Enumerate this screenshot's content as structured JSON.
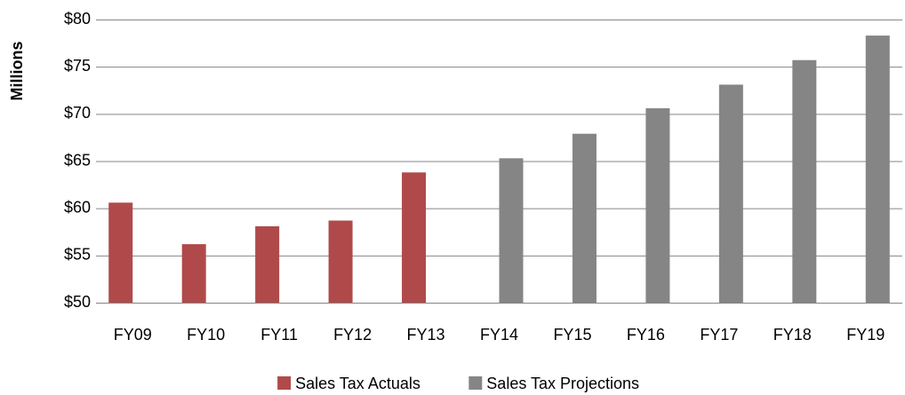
{
  "chart_data": {
    "type": "bar",
    "y_label": "Millions",
    "categories": [
      "FY09",
      "FY10",
      "FY11",
      "FY12",
      "FY13",
      "FY14",
      "FY15",
      "FY16",
      "FY17",
      "FY18",
      "FY19"
    ],
    "series": [
      {
        "name": "Sales Tax Actuals",
        "color": "#b04a4a",
        "values": [
          60.6,
          56.2,
          58.1,
          58.7,
          63.8,
          null,
          null,
          null,
          null,
          null,
          null
        ]
      },
      {
        "name": "Sales Tax Projections",
        "color": "#858585",
        "values": [
          null,
          null,
          null,
          null,
          null,
          65.3,
          67.9,
          70.6,
          73.1,
          75.7,
          78.3
        ]
      }
    ],
    "ylim": [
      50,
      80
    ],
    "yticks": [
      {
        "value": 50,
        "label": "$50"
      },
      {
        "value": 55,
        "label": "$55"
      },
      {
        "value": 60,
        "label": "$60"
      },
      {
        "value": 65,
        "label": "$65"
      },
      {
        "value": 70,
        "label": "$70"
      },
      {
        "value": 75,
        "label": "$75"
      },
      {
        "value": 80,
        "label": "$80"
      }
    ],
    "grid": true,
    "legend": "bottom"
  }
}
